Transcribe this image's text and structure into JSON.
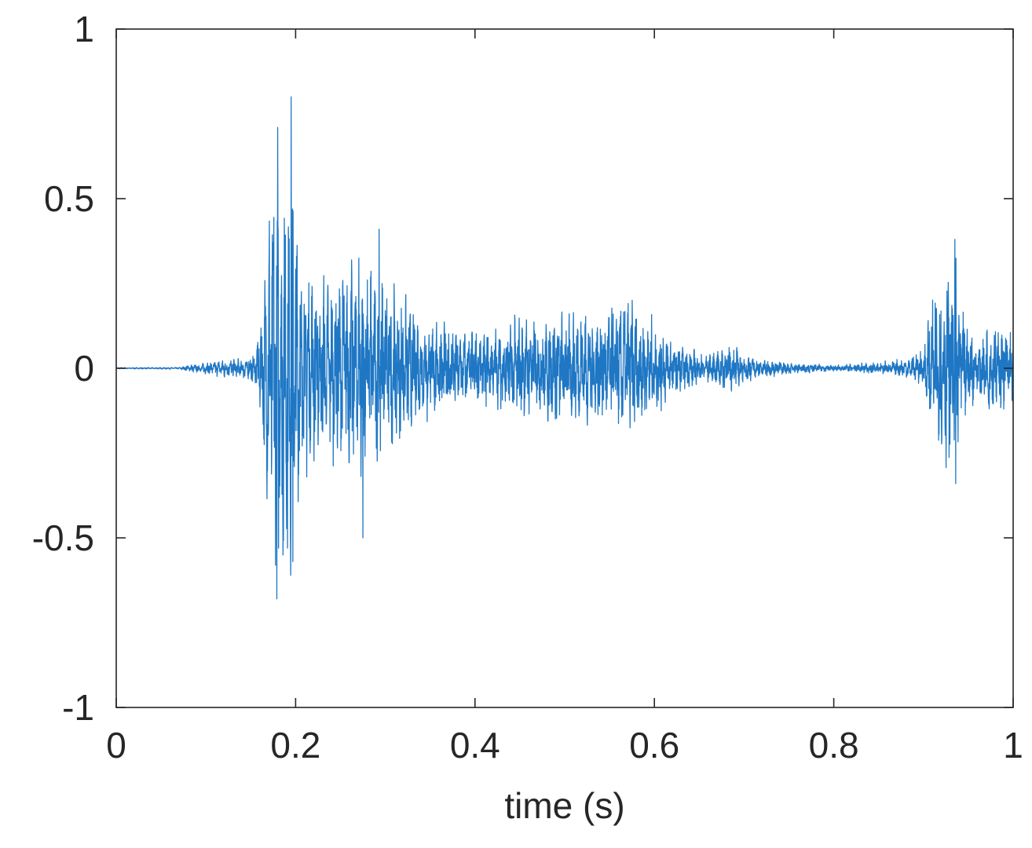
{
  "chart_data": {
    "type": "line",
    "title": "",
    "xlabel": "time (s)",
    "ylabel": "",
    "xlim": [
      0,
      1
    ],
    "ylim": [
      -1,
      1
    ],
    "xticks": [
      0,
      0.2,
      0.4,
      0.6,
      0.8,
      1
    ],
    "xtick_labels": [
      "0",
      "0.2",
      "0.4",
      "0.6",
      "0.8",
      "1"
    ],
    "yticks": [
      -1,
      -0.5,
      0,
      0.5,
      1
    ],
    "ytick_labels": [
      "-1",
      "-0.5",
      "0",
      "0.5",
      "1"
    ],
    "grid": false,
    "legend": "none",
    "line_color": "#1f77c4",
    "series": [
      {
        "envelope_points": [
          [
            0.0,
            0.002
          ],
          [
            0.07,
            0.003
          ],
          [
            0.08,
            0.01
          ],
          [
            0.1,
            0.02
          ],
          [
            0.12,
            0.03
          ],
          [
            0.14,
            0.03
          ],
          [
            0.155,
            0.05
          ],
          [
            0.16,
            0.15
          ],
          [
            0.165,
            0.3
          ],
          [
            0.17,
            0.5
          ],
          [
            0.178,
            0.7
          ],
          [
            0.185,
            0.65
          ],
          [
            0.195,
            0.65
          ],
          [
            0.205,
            0.42
          ],
          [
            0.22,
            0.3
          ],
          [
            0.24,
            0.3
          ],
          [
            0.26,
            0.35
          ],
          [
            0.275,
            0.38
          ],
          [
            0.29,
            0.33
          ],
          [
            0.31,
            0.26
          ],
          [
            0.34,
            0.18
          ],
          [
            0.37,
            0.15
          ],
          [
            0.4,
            0.12
          ],
          [
            0.42,
            0.12
          ],
          [
            0.45,
            0.17
          ],
          [
            0.5,
            0.18
          ],
          [
            0.55,
            0.2
          ],
          [
            0.58,
            0.22
          ],
          [
            0.6,
            0.15
          ],
          [
            0.63,
            0.07
          ],
          [
            0.66,
            0.05
          ],
          [
            0.68,
            0.08
          ],
          [
            0.7,
            0.06
          ],
          [
            0.72,
            0.03
          ],
          [
            0.75,
            0.02
          ],
          [
            0.8,
            0.01
          ],
          [
            0.85,
            0.02
          ],
          [
            0.88,
            0.03
          ],
          [
            0.9,
            0.06
          ],
          [
            0.91,
            0.25
          ],
          [
            0.92,
            0.3
          ],
          [
            0.935,
            0.35
          ],
          [
            0.945,
            0.2
          ],
          [
            0.96,
            0.08
          ],
          [
            0.97,
            0.15
          ],
          [
            0.985,
            0.15
          ],
          [
            1.0,
            0.12
          ]
        ],
        "peaks": [
          [
            0.18,
            0.71
          ],
          [
            0.195,
            0.8
          ],
          [
            0.179,
            -0.68
          ],
          [
            0.197,
            -0.57
          ],
          [
            0.275,
            -0.5
          ],
          [
            0.293,
            0.41
          ],
          [
            0.935,
            0.38
          ],
          [
            0.936,
            -0.34
          ]
        ]
      }
    ]
  }
}
